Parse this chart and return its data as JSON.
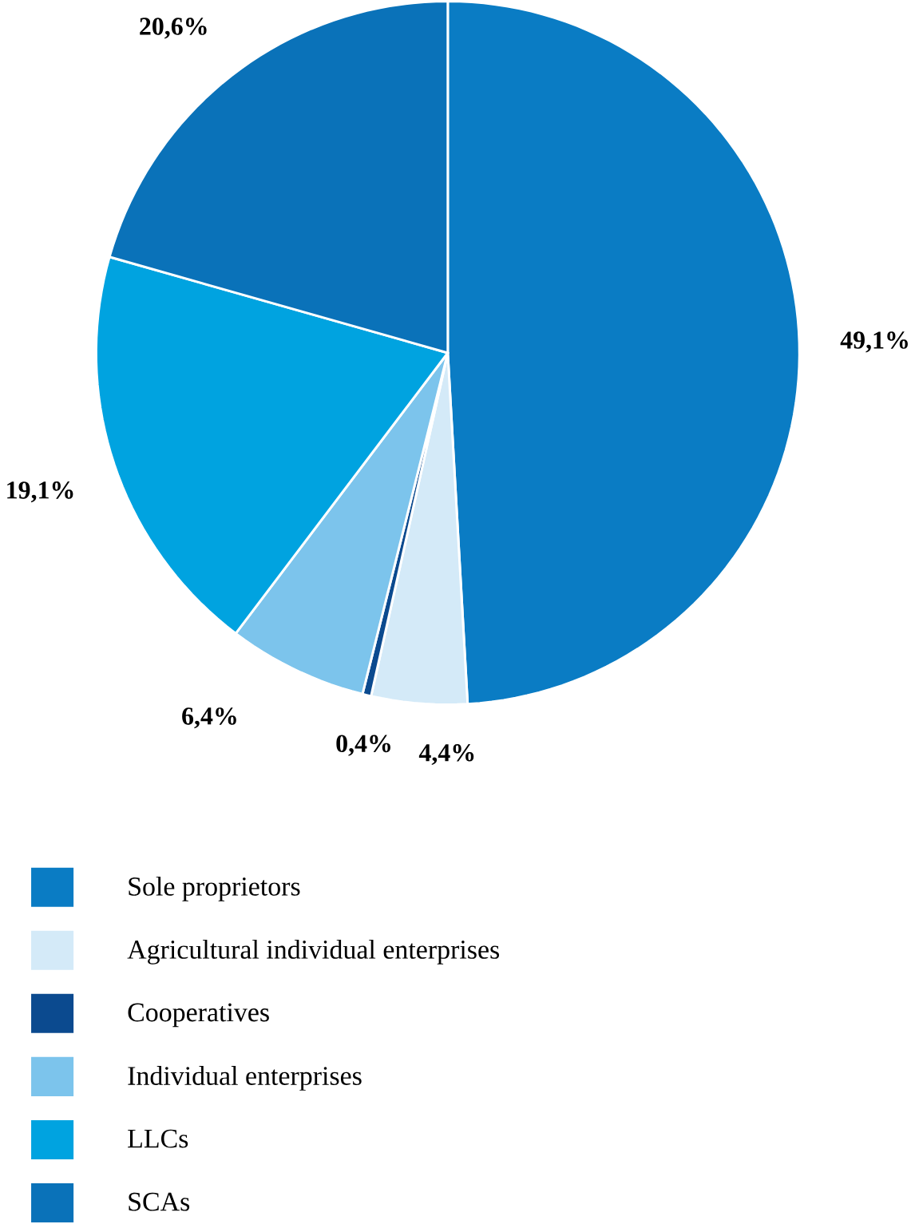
{
  "chart_data": {
    "type": "pie",
    "categories": [
      "Sole proprietors",
      "Agricultural individual enterprises",
      "Cooperatives",
      "Individual enterprises",
      "LLCs",
      "SCAs"
    ],
    "values": [
      49.1,
      4.4,
      0.4,
      6.4,
      19.1,
      20.6
    ],
    "value_labels": [
      "49,1%",
      "4,4%",
      "0,4%",
      "6,4%",
      "19,1%",
      "20,6%"
    ],
    "colors": [
      "#0a7cc4",
      "#d4eaf8",
      "#0b4a8f",
      "#7cc4ec",
      "#00a3e0",
      "#0a72b9"
    ],
    "legend": "bottom"
  }
}
